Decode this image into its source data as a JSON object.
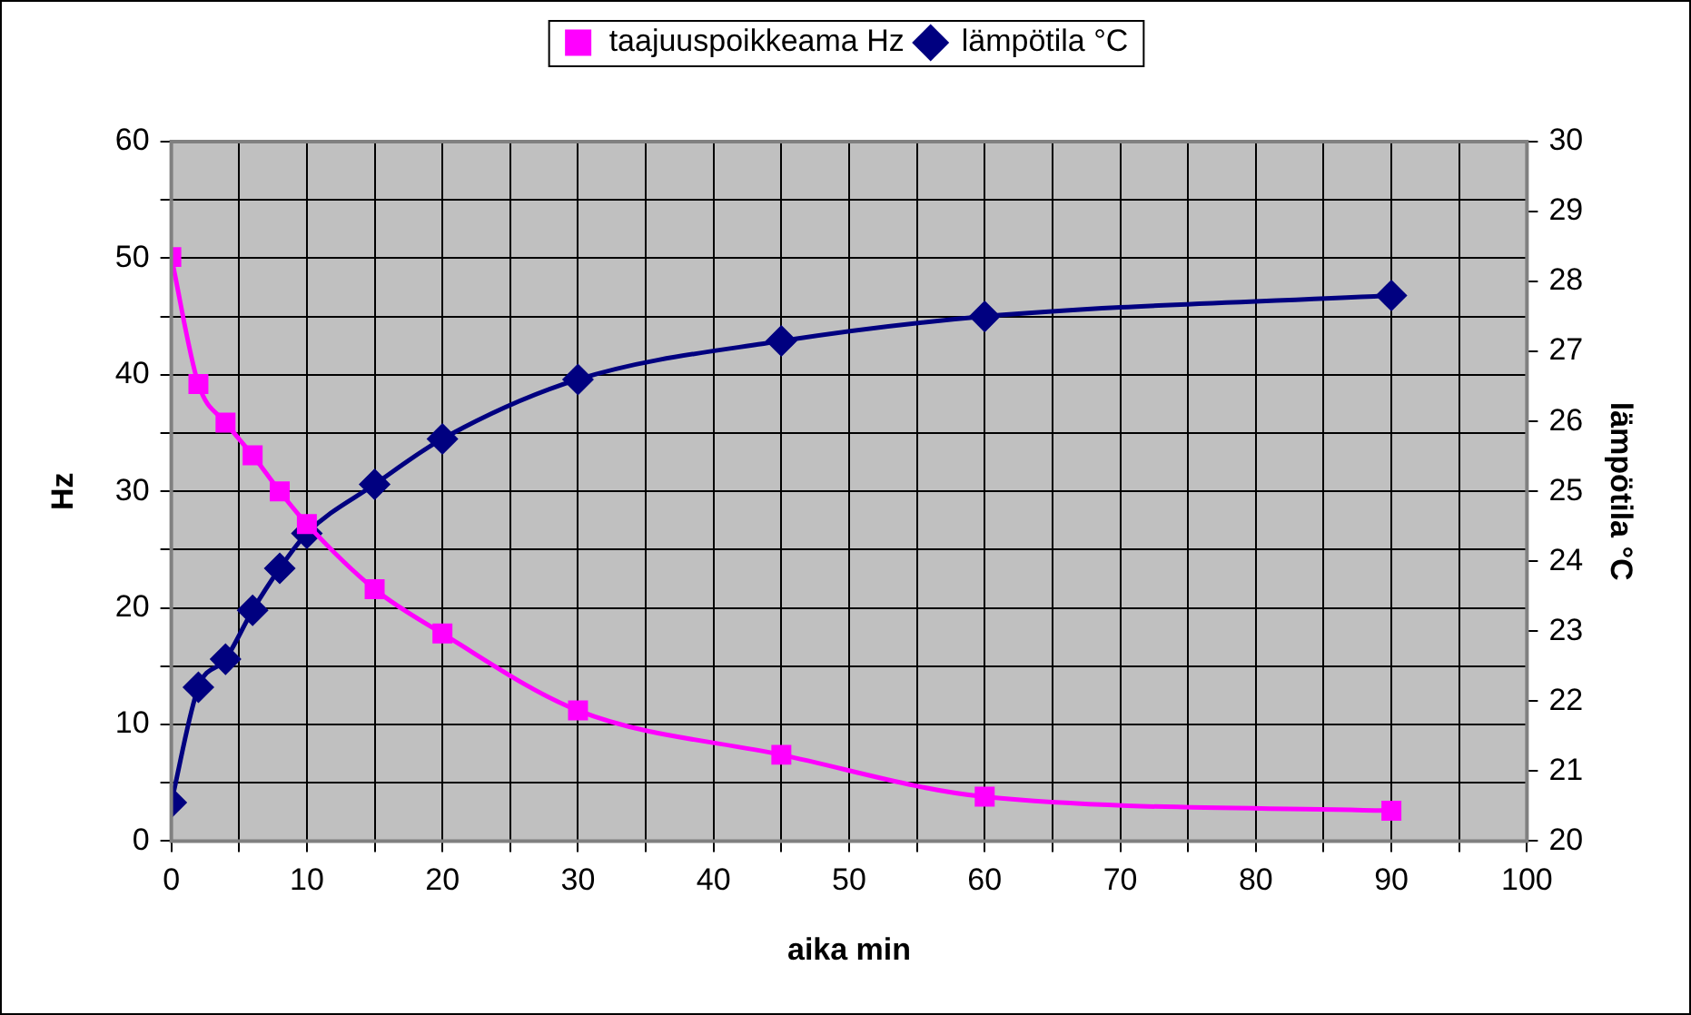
{
  "chart_data": {
    "type": "line",
    "xlabel": "aika min",
    "ylabel": "Hz",
    "y2label": "lämpötila °C",
    "xlim": [
      0,
      100
    ],
    "xticks": [
      0,
      {
        "value": 5,
        "label": null
      },
      10,
      {
        "value": 15,
        "label": null
      },
      20,
      {
        "value": 25,
        "label": null
      },
      30,
      {
        "value": 35,
        "label": null
      },
      40,
      {
        "value": 45,
        "label": null
      },
      50,
      {
        "value": 55,
        "label": null
      },
      60,
      {
        "value": 65,
        "label": null
      },
      70,
      {
        "value": 75,
        "label": null
      },
      80,
      {
        "value": 85,
        "label": null
      },
      90,
      {
        "value": 95,
        "label": null
      },
      100
    ],
    "ylim": [
      0,
      60
    ],
    "yticks": [
      0,
      {
        "value": 5,
        "label": null
      },
      10,
      {
        "value": 15,
        "label": null
      },
      20,
      {
        "value": 25,
        "label": null
      },
      30,
      {
        "value": 35,
        "label": null
      },
      40,
      {
        "value": 45,
        "label": null
      },
      50,
      {
        "value": 55,
        "label": null
      },
      60
    ],
    "y2lim": [
      20,
      30
    ],
    "y2ticks": [
      20,
      21,
      22,
      23,
      24,
      25,
      26,
      27,
      28,
      29,
      30
    ],
    "grid": true,
    "legend": "top",
    "x": [
      0,
      2,
      4,
      6,
      8,
      10,
      15,
      20,
      30,
      45,
      60,
      90
    ],
    "series": [
      {
        "name": "taajuuspoikkeama Hz",
        "color": "#ff00ff",
        "marker": "square",
        "values": [
          50.1,
          39.2,
          35.9,
          33.1,
          30.0,
          27.2,
          21.6,
          17.8,
          11.2,
          7.4,
          3.8,
          2.6
        ]
      },
      {
        "name": "lämpötila °C",
        "color": "#000080",
        "marker": "diamond",
        "axis": "y2",
        "values": [
          20.55,
          22.2,
          22.6,
          23.3,
          23.9,
          24.4,
          25.1,
          25.75,
          26.6,
          27.15,
          27.5,
          27.8
        ]
      }
    ]
  }
}
